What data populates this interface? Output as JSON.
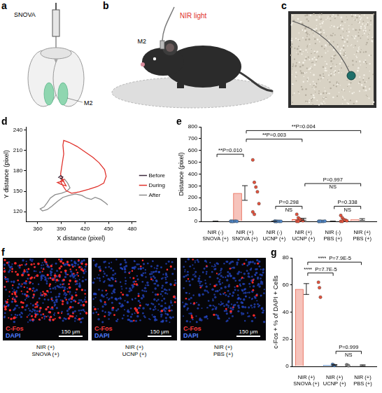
{
  "panels": {
    "a": {
      "letter": "a",
      "labels": [
        "SNOVA",
        "M2"
      ]
    },
    "b": {
      "letter": "b",
      "labels": [
        "NIR light",
        "M2"
      ]
    },
    "c": {
      "letter": "c"
    },
    "f": {
      "letter": "f",
      "images": [
        {
          "channels": [
            "C-Fos",
            "DAPI"
          ],
          "scale_bar": "150 μm",
          "caption": "NIR (+)\nSNOVA (+)"
        },
        {
          "channels": [
            "C-Fos",
            "DAPI"
          ],
          "scale_bar": "150 μm",
          "caption": "NIR (+)\nUCNP (+)"
        },
        {
          "channels": [
            "C-Fos",
            "DAPI"
          ],
          "scale_bar": "150 μm",
          "caption": "NIR (+)\nPBS (+)"
        }
      ]
    }
  },
  "chart_data": [
    {
      "panel": "d",
      "type": "line",
      "x_label": "X distance (pixel)",
      "y_label": "Y distance (pixel)",
      "xlim": [
        345,
        485
      ],
      "xticks": [
        360,
        390,
        420,
        450,
        480
      ],
      "ylim": [
        105,
        245
      ],
      "yticks": [
        120,
        150,
        180,
        210,
        240
      ],
      "grid": false,
      "legend": "right",
      "series": [
        {
          "name": "Before",
          "color": "#3d2b3d",
          "x": [
            386,
            389,
            392,
            390,
            388
          ],
          "values": [
            170,
            173,
            171,
            168,
            170
          ]
        },
        {
          "name": "During",
          "color": "#e0312b",
          "x": [
            388,
            393,
            385,
            390,
            396,
            392,
            389,
            391,
            393,
            392,
            393,
            400,
            410,
            420,
            430,
            438,
            445,
            447,
            444,
            436,
            425,
            413,
            403,
            396,
            392,
            389,
            394
          ],
          "values": [
            170,
            165,
            163,
            160,
            158,
            166,
            175,
            190,
            205,
            218,
            225,
            222,
            216,
            208,
            200,
            192,
            182,
            172,
            162,
            157,
            153,
            149,
            147,
            151,
            158,
            165,
            168
          ]
        },
        {
          "name": "After",
          "color": "#8c8c8c",
          "x": [
            394,
            398,
            401,
            397,
            390,
            382,
            376,
            372,
            368,
            363,
            366,
            372,
            378,
            385,
            392,
            400,
            408,
            416,
            422,
            428,
            433,
            440,
            446,
            449
          ],
          "values": [
            168,
            162,
            155,
            150,
            147,
            145,
            140,
            133,
            127,
            124,
            121,
            123,
            128,
            135,
            141,
            144,
            146,
            144,
            140,
            138,
            141,
            138,
            133,
            130
          ]
        }
      ]
    },
    {
      "panel": "e",
      "type": "bar",
      "y_label": "Distance (pixel)",
      "categories": [
        "NIR (-)\nSNOVA (+)",
        "NIR (+)\nSNOVA (+)",
        "NIR (-)\nUCNP (+)",
        "NIR (+)\nUCNP (+)",
        "NIR (-)\nPBS (+)",
        "NIR (+)\nPBS (+)"
      ],
      "values": [
        1,
        240,
        1,
        18,
        1,
        16
      ],
      "errors": [
        0.5,
        62,
        0.5,
        8,
        0.5,
        7
      ],
      "points": [
        [
          0,
          0,
          0,
          2,
          0,
          1,
          0
        ],
        [
          520,
          330,
          290,
          250,
          150,
          80,
          60
        ],
        [
          0,
          0,
          1,
          0,
          0,
          2,
          0
        ],
        [
          60,
          30,
          20,
          10,
          5,
          0,
          0
        ],
        [
          0,
          1,
          0,
          0,
          2,
          0,
          0
        ],
        [
          50,
          30,
          15,
          10,
          5,
          0,
          0
        ]
      ],
      "colors": [
        "#4f86c6",
        "#e5533d",
        "#4f86c6",
        "#e5533d",
        "#4f86c6",
        "#e5533d"
      ],
      "ylim": [
        0,
        800
      ],
      "yticks": [
        0,
        100,
        200,
        300,
        400,
        500,
        600,
        700,
        800
      ],
      "grid": false,
      "comparisons": [
        {
          "between": [
            0,
            1
          ],
          "label": "**P=0.010"
        },
        {
          "between": [
            1,
            3
          ],
          "label": "**P=0.003"
        },
        {
          "between": [
            1,
            5
          ],
          "label": "**P=0.004"
        },
        {
          "between": [
            2,
            3
          ],
          "label": "P=0.298\nNS"
        },
        {
          "between": [
            4,
            5
          ],
          "label": "P=0.338\nNS"
        },
        {
          "between": [
            3,
            5
          ],
          "label": "P=0.997\nNS"
        }
      ]
    },
    {
      "panel": "g",
      "type": "bar",
      "y_label": "c-Fos + % of DAPI + Cells",
      "categories": [
        "NIR (+)\nSNOVA (+)",
        "NIR (+)\nUCNP (+)",
        "NIR (+)\nPBS (+)"
      ],
      "values": [
        57,
        1,
        0.8
      ],
      "errors": [
        4,
        0.3,
        0.3
      ],
      "points": [
        [
          62,
          58,
          51
        ],
        [
          1.5,
          0.8,
          0.6
        ],
        [
          1.2,
          0.7,
          0.5
        ]
      ],
      "colors": [
        "#e5533d",
        "#4f86c6",
        "#8a8a8a"
      ],
      "ylim": [
        0,
        80
      ],
      "yticks": [
        0,
        20,
        40,
        60,
        80
      ],
      "grid": false,
      "comparisons": [
        {
          "between": [
            0,
            1
          ],
          "label": "****  P=7.7E-5"
        },
        {
          "between": [
            0,
            2
          ],
          "label": "****  P=7.9E-5"
        },
        {
          "between": [
            1,
            2
          ],
          "label": "P=0.999\nNS"
        }
      ]
    }
  ]
}
